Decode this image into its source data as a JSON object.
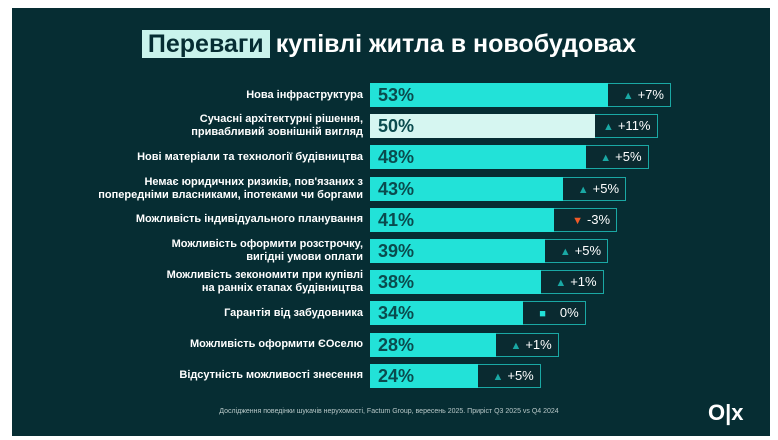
{
  "chart_data": {
    "type": "bar",
    "orientation": "horizontal",
    "title_highlight": "Переваги",
    "title_rest": "купівлі житла в новобудовах",
    "unit": "%",
    "xlim": [
      0,
      100
    ],
    "grid": false,
    "categories": [
      [
        "Нова інфраструктура"
      ],
      [
        "Сучасні архітектурні рішення,",
        "привабливий зовнішній вигляд"
      ],
      [
        "Нові матеріали та технології будівництва"
      ],
      [
        "Немає юридичних ризиків, пов'язаних з",
        "попередніми власниками, іпотеками чи боргами"
      ],
      [
        "Можливість індивідуального планування"
      ],
      [
        "Можливість оформити розстрочку,",
        "вигідні умови оплати"
      ],
      [
        "Можливість зекономити при купівлі",
        "на ранніх етапах будівництва"
      ],
      [
        "Гарантія від забудовника"
      ],
      [
        "Можливість оформити ЄОселю"
      ],
      [
        "Відсутність можливості знесення"
      ]
    ],
    "values": [
      53,
      50,
      48,
      43,
      41,
      39,
      38,
      34,
      28,
      24
    ],
    "value_labels": [
      "53%",
      "50%",
      "48%",
      "43%",
      "41%",
      "39%",
      "38%",
      "34%",
      "28%",
      "24%"
    ],
    "deltas": [
      "+7%",
      "+11%",
      "+5%",
      "+5%",
      "-3%",
      "+5%",
      "+1%",
      "0%",
      "+1%",
      "+5%"
    ],
    "delta_icons": [
      "triangle-up-icon",
      "triangle-up-icon",
      "triangle-up-icon",
      "triangle-up-icon",
      "triangle-down-icon",
      "triangle-up-icon",
      "triangle-up-icon",
      "square-icon",
      "triangle-up-icon",
      "triangle-up-icon"
    ],
    "highlighted_index": 1
  },
  "colors": {
    "background": "#062d33",
    "bar": "#22e2d8",
    "bar_highlight": "#d6f6f1",
    "up": "#1aa8a4",
    "down": "#f05a28"
  },
  "footnote": "Дослідження поведінки шукачів нерухомості, Factum Group, вересень 2025. Приріст Q3 2025 vs Q4 2024",
  "logo": "OLX"
}
